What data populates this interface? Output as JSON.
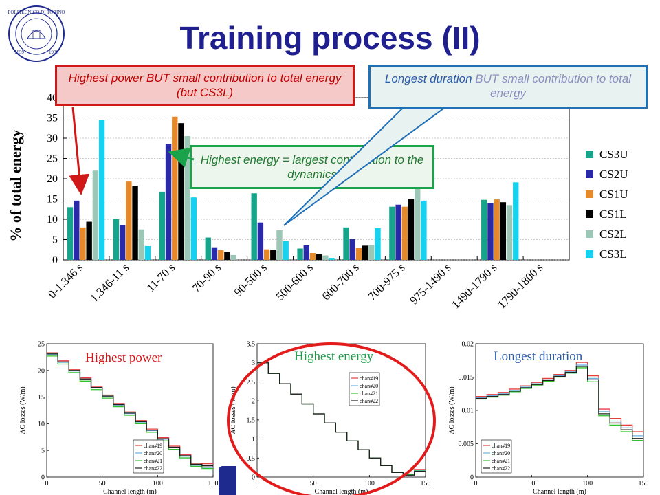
{
  "slide": {
    "title": "Training process (II)",
    "logo_text": "POLITECNICO DI TORINO",
    "logo_year_left": "1859",
    "logo_year_right": "1906"
  },
  "callouts": {
    "power": "Highest power BUT small contribution to total energy (but CS3L)",
    "energy": "Highest energy = largest contribution to the dynamics",
    "duration_highlight": "Longest duration",
    "duration_rest": " BUT small contribution to total energy"
  },
  "colors": {
    "CS3U": "#16a58a",
    "CS2U": "#2a2aa8",
    "CS1U": "#e6892a",
    "CS1L": "#000000",
    "CS2L": "#9cc7b6",
    "CS3L": "#17d2ee",
    "callout_red": "#d01818",
    "callout_green": "#1aa34a",
    "callout_blue": "#2070b8",
    "ellipse_red": "#e21b1b"
  },
  "chart_data": [
    {
      "type": "bar",
      "title": "",
      "xlabel": "",
      "ylabel": "% of total energy",
      "ylim": [
        0,
        40
      ],
      "yticks": [
        0,
        5,
        10,
        15,
        20,
        25,
        30,
        35,
        40
      ],
      "legend_position": "right",
      "categories": [
        "0-1.346 s",
        "1.346-11 s",
        "11-70 s",
        "70-90 s",
        "90-500 s",
        "500-600 s",
        "600-700 s",
        "700-975 s",
        "975-1490 s",
        "1490-1790 s",
        "1790-1800 s"
      ],
      "series": [
        {
          "name": "CS3U",
          "values": [
            13,
            10,
            16.8,
            5.5,
            16.4,
            2.8,
            8,
            13.1,
            0,
            14.8,
            0
          ]
        },
        {
          "name": "CS2U",
          "values": [
            14.6,
            8.5,
            28.6,
            3.1,
            9.2,
            3.6,
            5.1,
            13.6,
            0,
            14,
            0
          ]
        },
        {
          "name": "CS1U",
          "values": [
            8,
            19.3,
            35.3,
            2.4,
            2.6,
            1.7,
            2.9,
            13.1,
            0,
            14.9,
            0
          ]
        },
        {
          "name": "CS1L",
          "values": [
            9.4,
            18.3,
            33.7,
            1.9,
            2.5,
            1.4,
            3.5,
            15,
            0,
            14.2,
            0
          ]
        },
        {
          "name": "CS2L",
          "values": [
            22,
            7.5,
            30.5,
            1.2,
            7.3,
            1.1,
            3.6,
            18.2,
            0,
            13.5,
            0
          ]
        },
        {
          "name": "CS3L",
          "values": [
            34.5,
            3.4,
            15.4,
            0,
            4.6,
            0.5,
            7.8,
            14.6,
            0,
            19.1,
            0
          ]
        }
      ]
    },
    {
      "type": "line",
      "title": "Highest power",
      "xlabel": "Channel length (m)",
      "ylabel": "AC losses (W/m)",
      "xlim": [
        0,
        150
      ],
      "ylim": [
        0,
        25
      ],
      "xticks": [
        0,
        50,
        100,
        150
      ],
      "yticks": [
        0,
        5,
        10,
        15,
        20,
        25
      ],
      "legend_position": "right",
      "x_edges": [
        0,
        10,
        20,
        30,
        40,
        50,
        60,
        70,
        80,
        90,
        100,
        110,
        120,
        130,
        140,
        150
      ],
      "series": [
        {
          "name": "chan#19",
          "color": "#e24040",
          "values": [
            23.3,
            21.8,
            20.2,
            18.6,
            17.0,
            15.4,
            13.8,
            12.2,
            10.6,
            9.0,
            7.4,
            5.8,
            4.2,
            2.6,
            2.5
          ]
        },
        {
          "name": "chan#20",
          "color": "#6fb0e0",
          "values": [
            23.0,
            21.5,
            19.9,
            18.3,
            16.7,
            15.1,
            13.5,
            11.9,
            10.3,
            8.7,
            7.1,
            5.5,
            3.9,
            2.2,
            1.8
          ]
        },
        {
          "name": "chan#21",
          "color": "#30c030",
          "values": [
            22.7,
            21.2,
            19.6,
            18.0,
            16.4,
            14.8,
            13.2,
            11.6,
            10.0,
            8.4,
            6.8,
            5.2,
            3.6,
            2.0,
            1.6
          ]
        },
        {
          "name": "chan#22",
          "color": "#202020",
          "values": [
            23.1,
            21.6,
            20.0,
            18.4,
            16.8,
            15.2,
            13.6,
            12.0,
            10.4,
            8.8,
            7.2,
            5.6,
            4.0,
            2.4,
            2.1
          ]
        }
      ]
    },
    {
      "type": "line",
      "title": "Highest energy",
      "xlabel": "Channel length (m)",
      "ylabel": "AC losses (W/m)",
      "xlim": [
        0,
        150
      ],
      "ylim": [
        0,
        3.5
      ],
      "xticks": [
        0,
        50,
        100,
        150
      ],
      "yticks": [
        0,
        0.5,
        1,
        1.5,
        2,
        2.5,
        3,
        3.5
      ],
      "legend_position": "top-right",
      "x_edges": [
        0,
        10,
        20,
        30,
        40,
        50,
        60,
        70,
        80,
        90,
        100,
        110,
        120,
        130,
        140,
        150
      ],
      "series": [
        {
          "name": "chan#19",
          "color": "#e24040",
          "values": [
            3.0,
            2.72,
            2.45,
            2.18,
            1.92,
            1.66,
            1.42,
            1.18,
            0.95,
            0.72,
            0.5,
            0.3,
            0.12,
            0.05,
            0.2
          ]
        },
        {
          "name": "chan#20",
          "color": "#6fb0e0",
          "values": [
            3.0,
            2.72,
            2.45,
            2.18,
            1.92,
            1.66,
            1.42,
            1.18,
            0.95,
            0.72,
            0.5,
            0.3,
            0.12,
            0.05,
            0.18
          ]
        },
        {
          "name": "chan#21",
          "color": "#30c030",
          "values": [
            3.0,
            2.72,
            2.45,
            2.18,
            1.92,
            1.66,
            1.42,
            1.18,
            0.95,
            0.72,
            0.5,
            0.3,
            0.12,
            0.06,
            0.16
          ]
        },
        {
          "name": "chan#22",
          "color": "#202020",
          "values": [
            3.0,
            2.72,
            2.45,
            2.18,
            1.92,
            1.66,
            1.42,
            1.18,
            0.95,
            0.72,
            0.5,
            0.3,
            0.12,
            0.05,
            0.15
          ]
        }
      ]
    },
    {
      "type": "line",
      "title": "Longest duration",
      "xlabel": "Channel length (m)",
      "ylabel": "AC losses (W/m)",
      "xlim": [
        0,
        150
      ],
      "ylim": [
        0,
        0.02
      ],
      "xticks": [
        0,
        50,
        100,
        150
      ],
      "yticks": [
        0,
        0.005,
        0.01,
        0.015,
        0.02
      ],
      "ytick_labels": [
        "0",
        "0.005",
        "0.01",
        "0.015",
        "0.02"
      ],
      "legend_position": "bottom-left",
      "x_edges": [
        0,
        10,
        20,
        30,
        40,
        50,
        60,
        70,
        80,
        90,
        100,
        110,
        120,
        130,
        140,
        150
      ],
      "series": [
        {
          "name": "chan#19",
          "color": "#e24040",
          "values": [
            0.0121,
            0.0124,
            0.0127,
            0.0132,
            0.0137,
            0.0142,
            0.0148,
            0.0154,
            0.016,
            0.0172,
            0.0152,
            0.0102,
            0.0088,
            0.0078,
            0.0068
          ]
        },
        {
          "name": "chan#20",
          "color": "#6fb0e0",
          "values": [
            0.0119,
            0.0122,
            0.0125,
            0.013,
            0.0135,
            0.014,
            0.0146,
            0.0152,
            0.0158,
            0.0168,
            0.0148,
            0.0098,
            0.0084,
            0.0074,
            0.0062
          ]
        },
        {
          "name": "chan#21",
          "color": "#30c030",
          "values": [
            0.0117,
            0.012,
            0.0123,
            0.0128,
            0.0133,
            0.0138,
            0.0144,
            0.015,
            0.0156,
            0.0164,
            0.0143,
            0.0092,
            0.0078,
            0.0068,
            0.0055
          ]
        },
        {
          "name": "chan#22",
          "color": "#202020",
          "values": [
            0.0118,
            0.0121,
            0.0124,
            0.0129,
            0.0134,
            0.0139,
            0.0145,
            0.0151,
            0.0157,
            0.0166,
            0.0146,
            0.0095,
            0.0081,
            0.0071,
            0.0058
          ]
        }
      ]
    }
  ]
}
